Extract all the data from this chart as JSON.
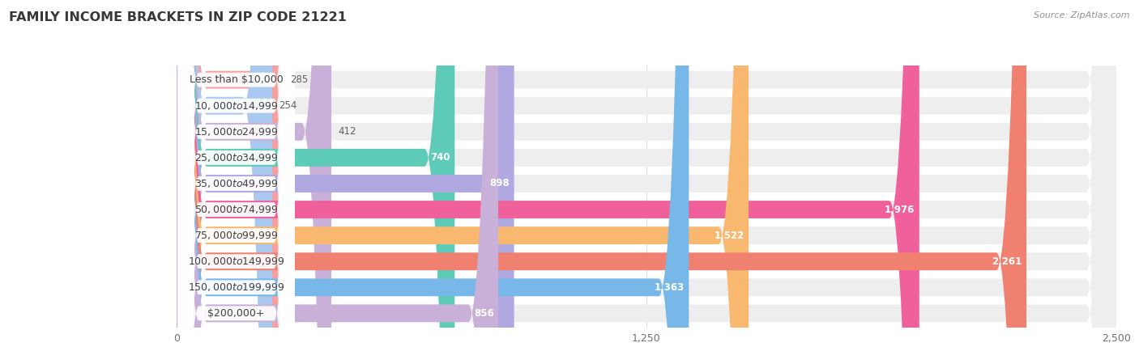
{
  "title": "FAMILY INCOME BRACKETS IN ZIP CODE 21221",
  "source": "Source: ZipAtlas.com",
  "categories": [
    "Less than $10,000",
    "$10,000 to $14,999",
    "$15,000 to $24,999",
    "$25,000 to $34,999",
    "$35,000 to $49,999",
    "$50,000 to $74,999",
    "$75,000 to $99,999",
    "$100,000 to $149,999",
    "$150,000 to $199,999",
    "$200,000+"
  ],
  "values": [
    285,
    254,
    412,
    740,
    898,
    1976,
    1522,
    2261,
    1363,
    856
  ],
  "colors": [
    "#F4A0A0",
    "#A8C8F0",
    "#C8B0D8",
    "#5ECBB8",
    "#B0A8E0",
    "#F0609A",
    "#F8B870",
    "#F08070",
    "#78B8E8",
    "#C8B0D8"
  ],
  "bar_bg_color": "#EEEEEE",
  "xlim_max": 2500,
  "xticks": [
    0,
    1250,
    2500
  ],
  "xtick_labels": [
    "0",
    "1,250",
    "2,500"
  ],
  "background_color": "#FFFFFF",
  "title_color": "#383838",
  "label_color": "#404040",
  "value_inside_color": "#FFFFFF",
  "value_outside_color": "#606060",
  "grid_color": "#DDDDDD",
  "bar_height": 0.68,
  "bar_gap": 1.0,
  "label_pill_color": "#FFFFFF",
  "title_fontsize": 11.5,
  "label_fontsize": 9,
  "value_fontsize": 8.5,
  "source_fontsize": 8
}
